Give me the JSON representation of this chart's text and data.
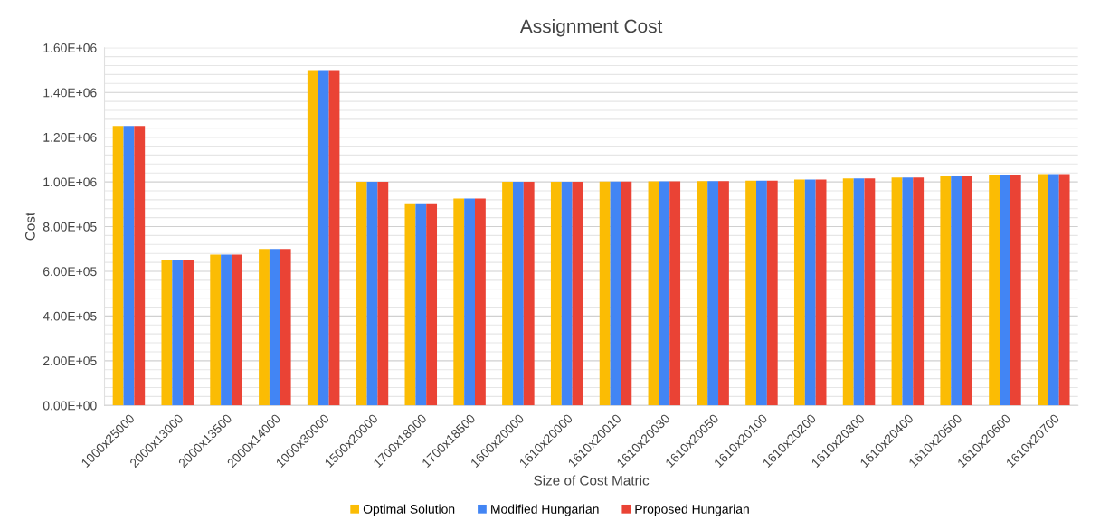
{
  "chart_data": {
    "type": "bar",
    "title": "Assignment Cost",
    "xlabel": "Size of Cost Matric",
    "ylabel": "Cost",
    "categories": [
      "1000x25000",
      "2000x13000",
      "2000x13500",
      "2000x14000",
      "1000x30000",
      "1500x20000",
      "1700x18000",
      "1700x18500",
      "1600x20000",
      "1610x20000",
      "1610x20010",
      "1610x20030",
      "1610x20050",
      "1610x20100",
      "1610x20200",
      "1610x20300",
      "1610x20400",
      "1610x20500",
      "1610x20600",
      "1610x20700"
    ],
    "series": [
      {
        "name": "Optimal Solution",
        "color": "#fbbc04",
        "values": [
          1250000,
          650000,
          675000,
          700000,
          1500000,
          1000000,
          900000,
          925000,
          1000000,
          1000000,
          1001000,
          1002000,
          1003000,
          1005000,
          1010000,
          1015000,
          1020000,
          1025000,
          1030000,
          1035000
        ]
      },
      {
        "name": "Modified Hungarian",
        "color": "#4285f4",
        "values": [
          1250000,
          650000,
          675000,
          700000,
          1500000,
          1000000,
          900000,
          925000,
          1000000,
          1000000,
          1001000,
          1002000,
          1003000,
          1005000,
          1010000,
          1015000,
          1020000,
          1025000,
          1030000,
          1035000
        ]
      },
      {
        "name": "Proposed Hungarian",
        "color": "#ea4335",
        "values": [
          1250000,
          650000,
          675000,
          700000,
          1500000,
          1000000,
          900000,
          925000,
          1000000,
          1000000,
          1001000,
          1002000,
          1003000,
          1005000,
          1010000,
          1015000,
          1020000,
          1025000,
          1030000,
          1035000
        ]
      }
    ],
    "ylim": [
      0,
      1600000
    ],
    "yticks": [
      {
        "value": 0,
        "label": "0.00E+00"
      },
      {
        "value": 40000,
        "label": null
      },
      {
        "value": 80000,
        "label": null
      },
      {
        "value": 120000,
        "label": null
      },
      {
        "value": 160000,
        "label": null
      },
      {
        "value": 200000,
        "label": "2.00E+05"
      },
      {
        "value": 240000,
        "label": null
      },
      {
        "value": 280000,
        "label": null
      },
      {
        "value": 320000,
        "label": null
      },
      {
        "value": 360000,
        "label": null
      },
      {
        "value": 400000,
        "label": "4.00E+05"
      },
      {
        "value": 440000,
        "label": null
      },
      {
        "value": 480000,
        "label": null
      },
      {
        "value": 520000,
        "label": null
      },
      {
        "value": 560000,
        "label": null
      },
      {
        "value": 600000,
        "label": "6.00E+05"
      },
      {
        "value": 640000,
        "label": null
      },
      {
        "value": 680000,
        "label": null
      },
      {
        "value": 720000,
        "label": null
      },
      {
        "value": 760000,
        "label": null
      },
      {
        "value": 800000,
        "label": "8.00E+05"
      },
      {
        "value": 840000,
        "label": null
      },
      {
        "value": 880000,
        "label": null
      },
      {
        "value": 920000,
        "label": null
      },
      {
        "value": 960000,
        "label": null
      },
      {
        "value": 1000000,
        "label": "1.00E+06"
      },
      {
        "value": 1040000,
        "label": null
      },
      {
        "value": 1080000,
        "label": null
      },
      {
        "value": 1120000,
        "label": null
      },
      {
        "value": 1160000,
        "label": null
      },
      {
        "value": 1200000,
        "label": "1.20E+06"
      },
      {
        "value": 1240000,
        "label": null
      },
      {
        "value": 1280000,
        "label": null
      },
      {
        "value": 1320000,
        "label": null
      },
      {
        "value": 1360000,
        "label": null
      },
      {
        "value": 1400000,
        "label": "1.40E+06"
      },
      {
        "value": 1440000,
        "label": null
      },
      {
        "value": 1480000,
        "label": null
      },
      {
        "value": 1520000,
        "label": null
      },
      {
        "value": 1560000,
        "label": null
      },
      {
        "value": 1600000,
        "label": "1.60E+06"
      }
    ],
    "grid": "y",
    "legend": "bottom"
  }
}
